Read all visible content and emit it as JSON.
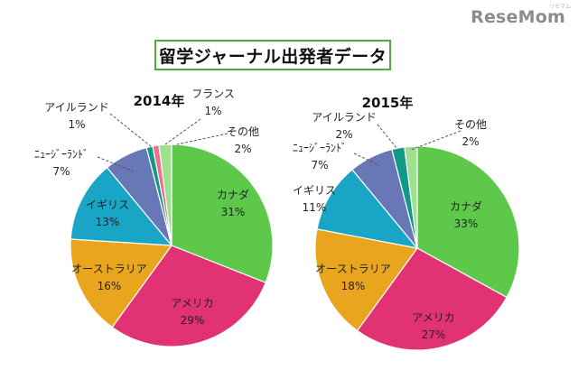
{
  "brand": {
    "name": "ReseMom",
    "tagline": "リセマム"
  },
  "title": "留学ジャーナル出発者データ",
  "colors": {
    "カナダ": "#5ec84a",
    "アメリカ": "#e13273",
    "オーストラリア": "#eaa51e",
    "イギリス": "#19a6c6",
    "ニュージーランド": "#6877b5",
    "アイルランド": "#109a86",
    "フランス": "#f26d8a",
    "その他": "#9ee08e"
  },
  "chart_data": [
    {
      "type": "pie",
      "title": "2014年",
      "slices": [
        {
          "label": "カナダ",
          "value": 31,
          "value_label": "31%"
        },
        {
          "label": "アメリカ",
          "value": 29,
          "value_label": "29%"
        },
        {
          "label": "オーストラリア",
          "value": 16,
          "value_label": "16%"
        },
        {
          "label": "イギリス",
          "value": 13,
          "value_label": "13%"
        },
        {
          "label": "ニュージーランド",
          "display": "ﾆｭｰｼﾞｰﾗﾝﾄﾞ",
          "value": 7,
          "value_label": "7%"
        },
        {
          "label": "アイルランド",
          "value": 1,
          "value_label": "1%"
        },
        {
          "label": "フランス",
          "value": 1,
          "value_label": "1%"
        },
        {
          "label": "その他",
          "value": 2,
          "value_label": "2%"
        }
      ]
    },
    {
      "type": "pie",
      "title": "2015年",
      "slices": [
        {
          "label": "カナダ",
          "value": 33,
          "value_label": "33%"
        },
        {
          "label": "アメリカ",
          "value": 27,
          "value_label": "27%"
        },
        {
          "label": "オーストラリア",
          "value": 18,
          "value_label": "18%"
        },
        {
          "label": "イギリス",
          "value": 11,
          "value_label": "11%"
        },
        {
          "label": "ニュージーランド",
          "display": "ﾆｭｰｼﾞｰﾗﾝﾄﾞ",
          "value": 7,
          "value_label": "7%"
        },
        {
          "label": "アイルランド",
          "value": 2,
          "value_label": "2%"
        },
        {
          "label": "その他",
          "value": 2,
          "value_label": "2%"
        }
      ]
    }
  ]
}
